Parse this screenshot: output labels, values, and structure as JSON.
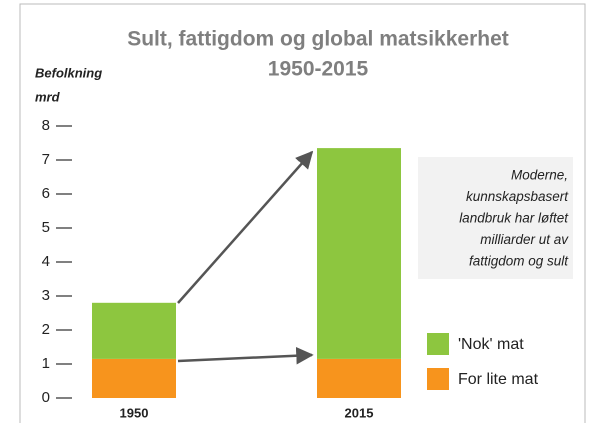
{
  "chart_data": {
    "type": "stacked_bar",
    "title": "Sult, fattigdom og global matsikkerhet",
    "subtitle": "1950-2015",
    "y_label": [
      "Befolkning",
      "mrd"
    ],
    "categories": [
      "1950",
      "2015"
    ],
    "series": [
      {
        "name": "For lite mat",
        "color": "#f7941d",
        "values": [
          1.15,
          1.15
        ]
      },
      {
        "name": "'Nok' mat",
        "color": "#8dc63f",
        "values": [
          1.65,
          6.2
        ]
      }
    ],
    "ylim": [
      0,
      8
    ],
    "yticks": [
      0,
      1,
      2,
      3,
      4,
      5,
      6,
      7,
      8
    ],
    "annotation": [
      "Moderne,",
      "kunnskapsbasert",
      "landbruk har løftet",
      "milliarder ut av",
      "fattigdom og sult"
    ]
  }
}
